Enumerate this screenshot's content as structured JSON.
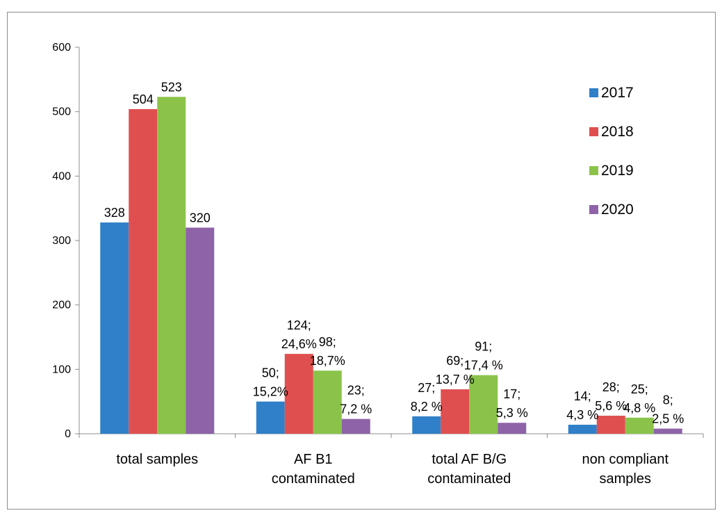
{
  "chart_data": {
    "type": "bar",
    "title": "",
    "xlabel": "",
    "ylabel": "",
    "ylim": [
      0,
      600
    ],
    "yticks": [
      0,
      100,
      200,
      300,
      400,
      500,
      600
    ],
    "grid": false,
    "legend_position": "right",
    "categories": [
      [
        "total samples"
      ],
      [
        "AF B1",
        "contaminated"
      ],
      [
        "total AF B/G",
        "contaminated"
      ],
      [
        "non compliant",
        "samples"
      ]
    ],
    "series": [
      {
        "name": "2017",
        "color": "#2f80c8",
        "values": [
          328,
          50,
          27,
          14
        ],
        "labels": [
          [
            "328"
          ],
          [
            "50;",
            "15,2%"
          ],
          [
            "27;",
            "8,2 %"
          ],
          [
            "14;",
            "4,3 %"
          ]
        ]
      },
      {
        "name": "2018",
        "color": "#e04f4f",
        "values": [
          504,
          124,
          69,
          28
        ],
        "labels": [
          [
            "504"
          ],
          [
            "124;",
            "24,6%"
          ],
          [
            "69;",
            "13,7 %"
          ],
          [
            "28;",
            "5,6 %"
          ]
        ]
      },
      {
        "name": "2019",
        "color": "#8bc34a",
        "values": [
          523,
          98,
          91,
          25
        ],
        "labels": [
          [
            "523"
          ],
          [
            "98;",
            "18,7%"
          ],
          [
            "91;",
            "17,4 %"
          ],
          [
            "25;",
            "4,8 %"
          ]
        ]
      },
      {
        "name": "2020",
        "color": "#8e63a8",
        "values": [
          320,
          23,
          17,
          8
        ],
        "labels": [
          [
            "320"
          ],
          [
            "23;",
            "7,2 %"
          ],
          [
            "17;",
            "5,3 %"
          ],
          [
            "8;",
            "2,5 %"
          ]
        ]
      }
    ]
  }
}
